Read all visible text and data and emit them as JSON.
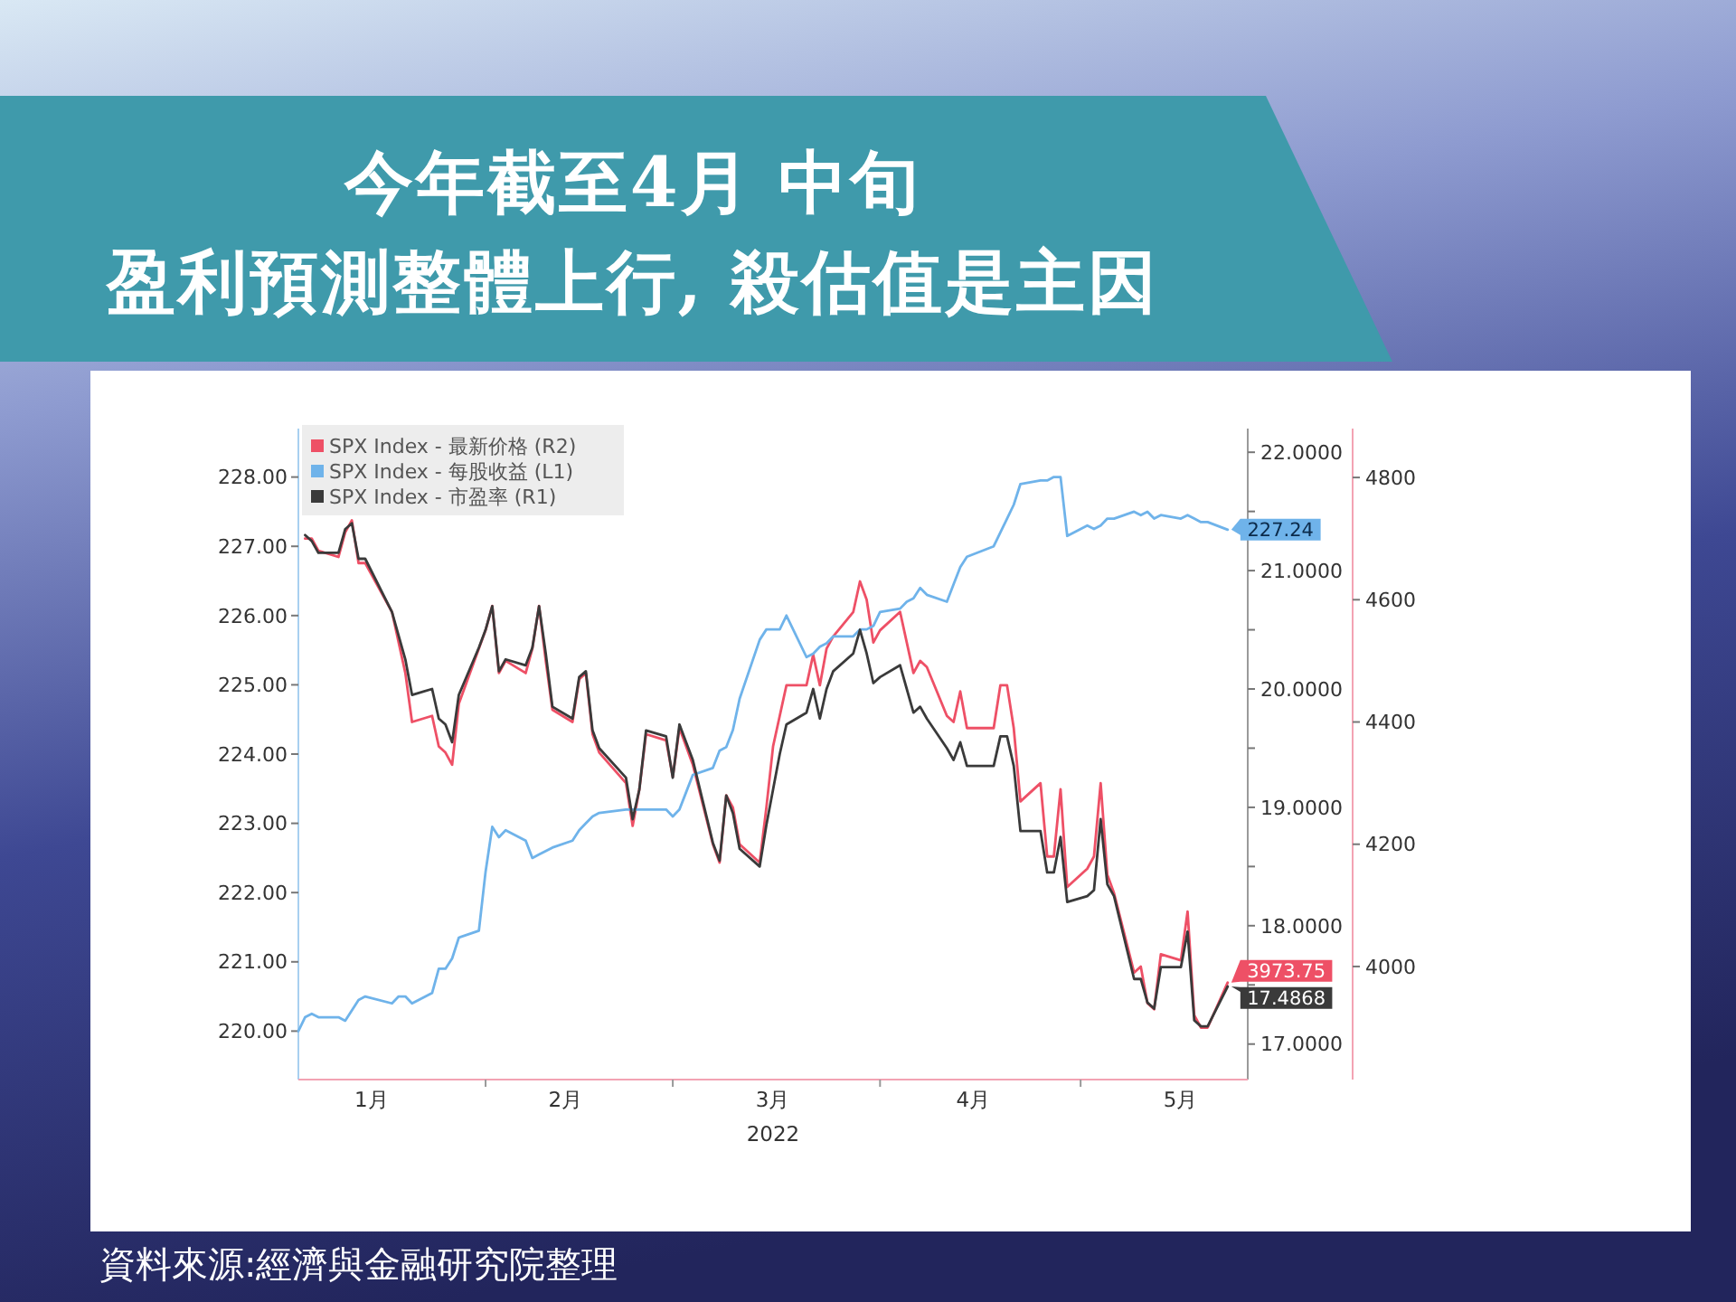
{
  "chart_data": {
    "type": "line",
    "title": "今年截至4月 中旬",
    "subtitle": "盈利預測整體上行, 殺估值是主因",
    "xlabel": "2022",
    "annotations": [
      "資料來源:經濟與金融研究院整理"
    ],
    "legend": "top left",
    "x": [
      "2022-01-04",
      "2022-01-05",
      "2022-01-06",
      "2022-01-07",
      "2022-01-10",
      "2022-01-11",
      "2022-01-12",
      "2022-01-13",
      "2022-01-14",
      "2022-01-18",
      "2022-01-19",
      "2022-01-20",
      "2022-01-21",
      "2022-01-24",
      "2022-01-25",
      "2022-01-26",
      "2022-01-27",
      "2022-01-28",
      "2022-01-31",
      "2022-02-01",
      "2022-02-02",
      "2022-02-03",
      "2022-02-04",
      "2022-02-07",
      "2022-02-08",
      "2022-02-09",
      "2022-02-10",
      "2022-02-11",
      "2022-02-14",
      "2022-02-15",
      "2022-02-16",
      "2022-02-17",
      "2022-02-18",
      "2022-02-22",
      "2022-02-23",
      "2022-02-24",
      "2022-02-25",
      "2022-02-28",
      "2022-03-01",
      "2022-03-02",
      "2022-03-03",
      "2022-03-04",
      "2022-03-07",
      "2022-03-08",
      "2022-03-09",
      "2022-03-10",
      "2022-03-11",
      "2022-03-14",
      "2022-03-15",
      "2022-03-16",
      "2022-03-17",
      "2022-03-18",
      "2022-03-21",
      "2022-03-22",
      "2022-03-23",
      "2022-03-24",
      "2022-03-25",
      "2022-03-28",
      "2022-03-29",
      "2022-03-30",
      "2022-03-31",
      "2022-04-01",
      "2022-04-04",
      "2022-04-05",
      "2022-04-06",
      "2022-04-07",
      "2022-04-08",
      "2022-04-11",
      "2022-04-12",
      "2022-04-13",
      "2022-04-14",
      "2022-04-18",
      "2022-04-19",
      "2022-04-20",
      "2022-04-21",
      "2022-04-22",
      "2022-04-25",
      "2022-04-26",
      "2022-04-27",
      "2022-04-28",
      "2022-04-29",
      "2022-05-02",
      "2022-05-03",
      "2022-05-04",
      "2022-05-05",
      "2022-05-06",
      "2022-05-09",
      "2022-05-10",
      "2022-05-11",
      "2022-05-12",
      "2022-05-13",
      "2022-05-16",
      "2022-05-17",
      "2022-05-18",
      "2022-05-19",
      "2022-05-20",
      "2022-05-23"
    ],
    "xlim": [
      "2022-01-04",
      "2022-05-26"
    ],
    "xticks": [
      {
        "value": "2022-01-15",
        "label": "1月"
      },
      {
        "value": "2022-02-01",
        "label": null
      },
      {
        "value": "2022-02-13",
        "label": "2月"
      },
      {
        "value": "2022-03-01",
        "label": null
      },
      {
        "value": "2022-03-16",
        "label": "3月"
      },
      {
        "value": "2022-04-01",
        "label": null
      },
      {
        "value": "2022-04-15",
        "label": "4月"
      },
      {
        "value": "2022-05-01",
        "label": null
      },
      {
        "value": "2022-05-16",
        "label": "5月"
      }
    ],
    "ylim": [
      219.3,
      228.7
    ],
    "yticks": [
      {
        "value": 220,
        "label": "220.00"
      },
      {
        "value": 221,
        "label": "221.00"
      },
      {
        "value": 222,
        "label": "222.00"
      },
      {
        "value": 223,
        "label": "223.00"
      },
      {
        "value": 224,
        "label": "224.00"
      },
      {
        "value": 225,
        "label": "225.00"
      },
      {
        "value": 226,
        "label": "226.00"
      },
      {
        "value": 227,
        "label": "227.00"
      },
      {
        "value": 228,
        "label": "228.00"
      }
    ],
    "y2lim": [
      16.7,
      22.2
    ],
    "y2ticks": [
      {
        "value": 17,
        "label": "17.0000"
      },
      {
        "value": 17.5,
        "label": null
      },
      {
        "value": 18,
        "label": "18.0000"
      },
      {
        "value": 18.5,
        "label": null
      },
      {
        "value": 19,
        "label": "19.0000"
      },
      {
        "value": 19.5,
        "label": null
      },
      {
        "value": 20,
        "label": "20.0000"
      },
      {
        "value": 20.5,
        "label": null
      },
      {
        "value": 21,
        "label": "21.0000"
      },
      {
        "value": 21.5,
        "label": null
      },
      {
        "value": 22,
        "label": "22.0000"
      }
    ],
    "y3lim": [
      3815,
      4880
    ],
    "y3ticks": [
      4000,
      4200,
      4400,
      4600,
      4800
    ],
    "series": [
      {
        "name": "SPX Index - 最新价格 (R2)",
        "color": "#ee5066",
        "axis": "y3",
        "values": [
          null,
          4700,
          4700,
          4680,
          4670,
          4710,
          4730,
          4660,
          4660,
          4580,
          4530,
          4480,
          4400,
          4410,
          4360,
          4350,
          4330,
          4430,
          4520,
          4550,
          4590,
          4480,
          4500,
          4480,
          4520,
          4590,
          4500,
          4420,
          4400,
          4470,
          4480,
          4380,
          4350,
          4300,
          4230,
          4290,
          4380,
          4370,
          4310,
          4390,
          4360,
          4330,
          4200,
          4170,
          4280,
          4260,
          4200,
          4170,
          4260,
          4360,
          4410,
          4460,
          4460,
          4510,
          4460,
          4520,
          4540,
          4580,
          4630,
          4600,
          4530,
          4550,
          4580,
          4530,
          4480,
          4500,
          4490,
          4410,
          4400,
          4450,
          4390,
          4390,
          4460,
          4460,
          4390,
          4270,
          4300,
          4180,
          4180,
          4290,
          4130,
          4160,
          4180,
          4300,
          4150,
          4120,
          3990,
          4000,
          3940,
          3930,
          4020,
          4010,
          4090,
          3920,
          3900,
          3900,
          3973.75
        ],
        "value_labels": [
          null,
          null,
          null,
          null,
          null,
          null,
          null,
          null,
          null,
          null,
          null,
          null,
          null,
          null,
          null,
          null,
          null,
          null,
          null,
          null,
          null,
          null,
          null,
          null,
          null,
          null,
          null,
          null,
          null,
          null,
          null,
          null,
          null,
          null,
          null,
          null,
          null,
          null,
          null,
          null,
          null,
          null,
          null,
          null,
          null,
          null,
          null,
          null,
          null,
          null,
          null,
          null,
          null,
          null,
          null,
          null,
          null,
          null,
          null,
          null,
          null,
          null,
          null,
          null,
          null,
          null,
          null,
          null,
          null,
          null,
          null,
          null,
          null,
          null,
          null,
          null,
          null,
          null,
          null,
          null,
          null,
          null,
          null,
          null,
          null,
          null,
          null,
          null,
          null,
          null,
          null,
          null,
          null,
          null,
          null,
          null,
          "3973.75"
        ]
      },
      {
        "name": "SPX Index - 每股收益 (L1)",
        "color": "#6fb3ea",
        "values": [
          220.0,
          220.2,
          220.25,
          220.2,
          220.2,
          220.15,
          220.3,
          220.45,
          220.5,
          220.4,
          220.5,
          220.5,
          220.4,
          220.55,
          220.9,
          220.9,
          221.05,
          221.35,
          221.45,
          222.3,
          222.95,
          222.8,
          222.9,
          222.75,
          222.5,
          222.55,
          222.6,
          222.65,
          222.75,
          222.9,
          223.0,
          223.1,
          223.15,
          223.2,
          223.2,
          223.2,
          223.2,
          223.2,
          223.1,
          223.2,
          223.45,
          223.7,
          223.8,
          224.05,
          224.1,
          224.35,
          224.8,
          225.65,
          225.8,
          225.8,
          225.8,
          226.0,
          225.4,
          225.45,
          225.55,
          225.6,
          225.7,
          225.7,
          225.8,
          225.8,
          225.85,
          226.05,
          226.1,
          226.2,
          226.25,
          226.4,
          226.3,
          226.2,
          226.45,
          226.7,
          226.85,
          227.0,
          227.2,
          227.4,
          227.6,
          227.9,
          227.95,
          227.95,
          228.0,
          228.0,
          227.15,
          227.3,
          227.25,
          227.3,
          227.4,
          227.4,
          227.5,
          227.45,
          227.5,
          227.4,
          227.45,
          227.4,
          227.45,
          227.4,
          227.35,
          227.35,
          227.24
        ],
        "value_labels": [
          null,
          null,
          null,
          null,
          null,
          null,
          null,
          null,
          null,
          null,
          null,
          null,
          null,
          null,
          null,
          null,
          null,
          null,
          null,
          null,
          null,
          null,
          null,
          null,
          null,
          null,
          null,
          null,
          null,
          null,
          null,
          null,
          null,
          null,
          null,
          null,
          null,
          null,
          null,
          null,
          null,
          null,
          null,
          null,
          null,
          null,
          null,
          null,
          null,
          null,
          null,
          null,
          null,
          null,
          null,
          null,
          null,
          null,
          null,
          null,
          null,
          null,
          null,
          null,
          null,
          null,
          null,
          null,
          null,
          null,
          null,
          null,
          null,
          null,
          null,
          null,
          null,
          null,
          null,
          null,
          null,
          null,
          null,
          null,
          null,
          null,
          null,
          null,
          null,
          null,
          null,
          null,
          null,
          null,
          null,
          null,
          "227.24"
        ]
      },
      {
        "name": "SPX Index - 市盈率 (R1)",
        "color": "#3a3a3a",
        "axis": "y2",
        "values": [
          null,
          21.3,
          21.25,
          21.15,
          21.15,
          21.35,
          21.4,
          21.1,
          21.1,
          20.65,
          20.45,
          20.25,
          19.95,
          20.0,
          19.75,
          19.7,
          19.55,
          19.95,
          20.35,
          20.5,
          20.7,
          20.15,
          20.25,
          20.2,
          20.35,
          20.7,
          20.3,
          19.85,
          19.75,
          20.1,
          20.15,
          19.65,
          19.5,
          19.25,
          18.9,
          19.15,
          19.65,
          19.6,
          19.25,
          19.7,
          19.55,
          19.4,
          18.7,
          18.55,
          19.1,
          18.95,
          18.65,
          18.5,
          18.85,
          19.15,
          19.45,
          19.7,
          19.8,
          20.0,
          19.75,
          20.0,
          20.15,
          20.3,
          20.5,
          20.3,
          20.05,
          20.1,
          20.2,
          20.0,
          19.8,
          19.85,
          19.75,
          19.5,
          19.4,
          19.55,
          19.35,
          19.35,
          19.6,
          19.6,
          19.35,
          18.8,
          18.8,
          18.45,
          18.45,
          18.75,
          18.2,
          18.25,
          18.3,
          18.9,
          18.35,
          18.25,
          17.55,
          17.55,
          17.35,
          17.3,
          17.65,
          17.65,
          17.95,
          17.2,
          17.15,
          17.15,
          17.4868
        ],
        "value_labels": [
          null,
          null,
          null,
          null,
          null,
          null,
          null,
          null,
          null,
          null,
          null,
          null,
          null,
          null,
          null,
          null,
          null,
          null,
          null,
          null,
          null,
          null,
          null,
          null,
          null,
          null,
          null,
          null,
          null,
          null,
          null,
          null,
          null,
          null,
          null,
          null,
          null,
          null,
          null,
          null,
          null,
          null,
          null,
          null,
          null,
          null,
          null,
          null,
          null,
          null,
          null,
          null,
          null,
          null,
          null,
          null,
          null,
          null,
          null,
          null,
          null,
          null,
          null,
          null,
          null,
          null,
          null,
          null,
          null,
          null,
          null,
          null,
          null,
          null,
          null,
          null,
          null,
          null,
          null,
          null,
          null,
          null,
          null,
          null,
          null,
          null,
          null,
          null,
          null,
          null,
          null,
          null,
          null,
          null,
          null,
          null,
          "17.4868"
        ]
      }
    ]
  }
}
